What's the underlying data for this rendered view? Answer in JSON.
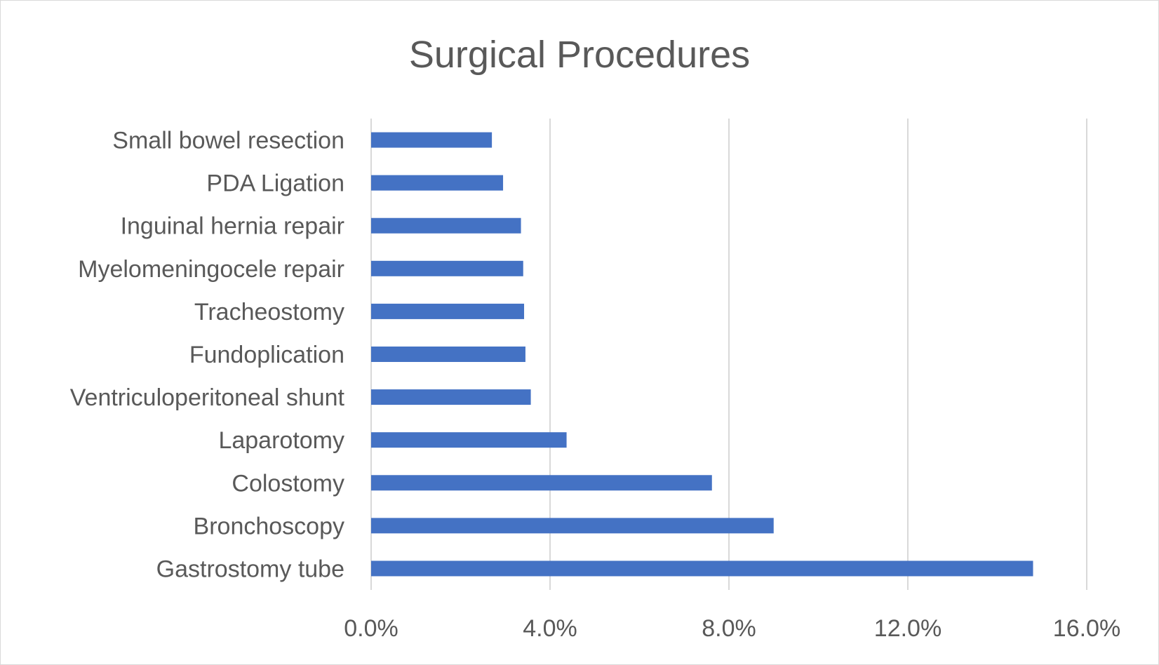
{
  "chart_data": {
    "type": "bar",
    "orientation": "horizontal",
    "title": "Surgical Procedures",
    "xlabel": "",
    "ylabel": "",
    "categories": [
      "Small bowel resection",
      "PDA Ligation",
      "Inguinal hernia repair",
      "Myelomeningocele repair",
      "Tracheostomy",
      "Fundoplication",
      "Ventriculoperitoneal shunt",
      "Laparotomy",
      "Colostomy",
      "Bronchoscopy",
      "Gastrostomy tube"
    ],
    "values": [
      2.7,
      2.95,
      3.35,
      3.4,
      3.42,
      3.45,
      3.57,
      4.37,
      7.62,
      9.0,
      14.8
    ],
    "xlim": [
      0,
      16
    ],
    "xticks": [
      "0.0%",
      "4.0%",
      "8.0%",
      "12.0%",
      "16.0%"
    ],
    "xtick_values": [
      0,
      4,
      8,
      12,
      16
    ],
    "value_unit": "%",
    "grid": "vertical",
    "legend": "none",
    "colors": {
      "bar": "#4472c4",
      "grid": "#d9d9d9",
      "text": "#595959",
      "border": "#d9d9d9"
    }
  }
}
